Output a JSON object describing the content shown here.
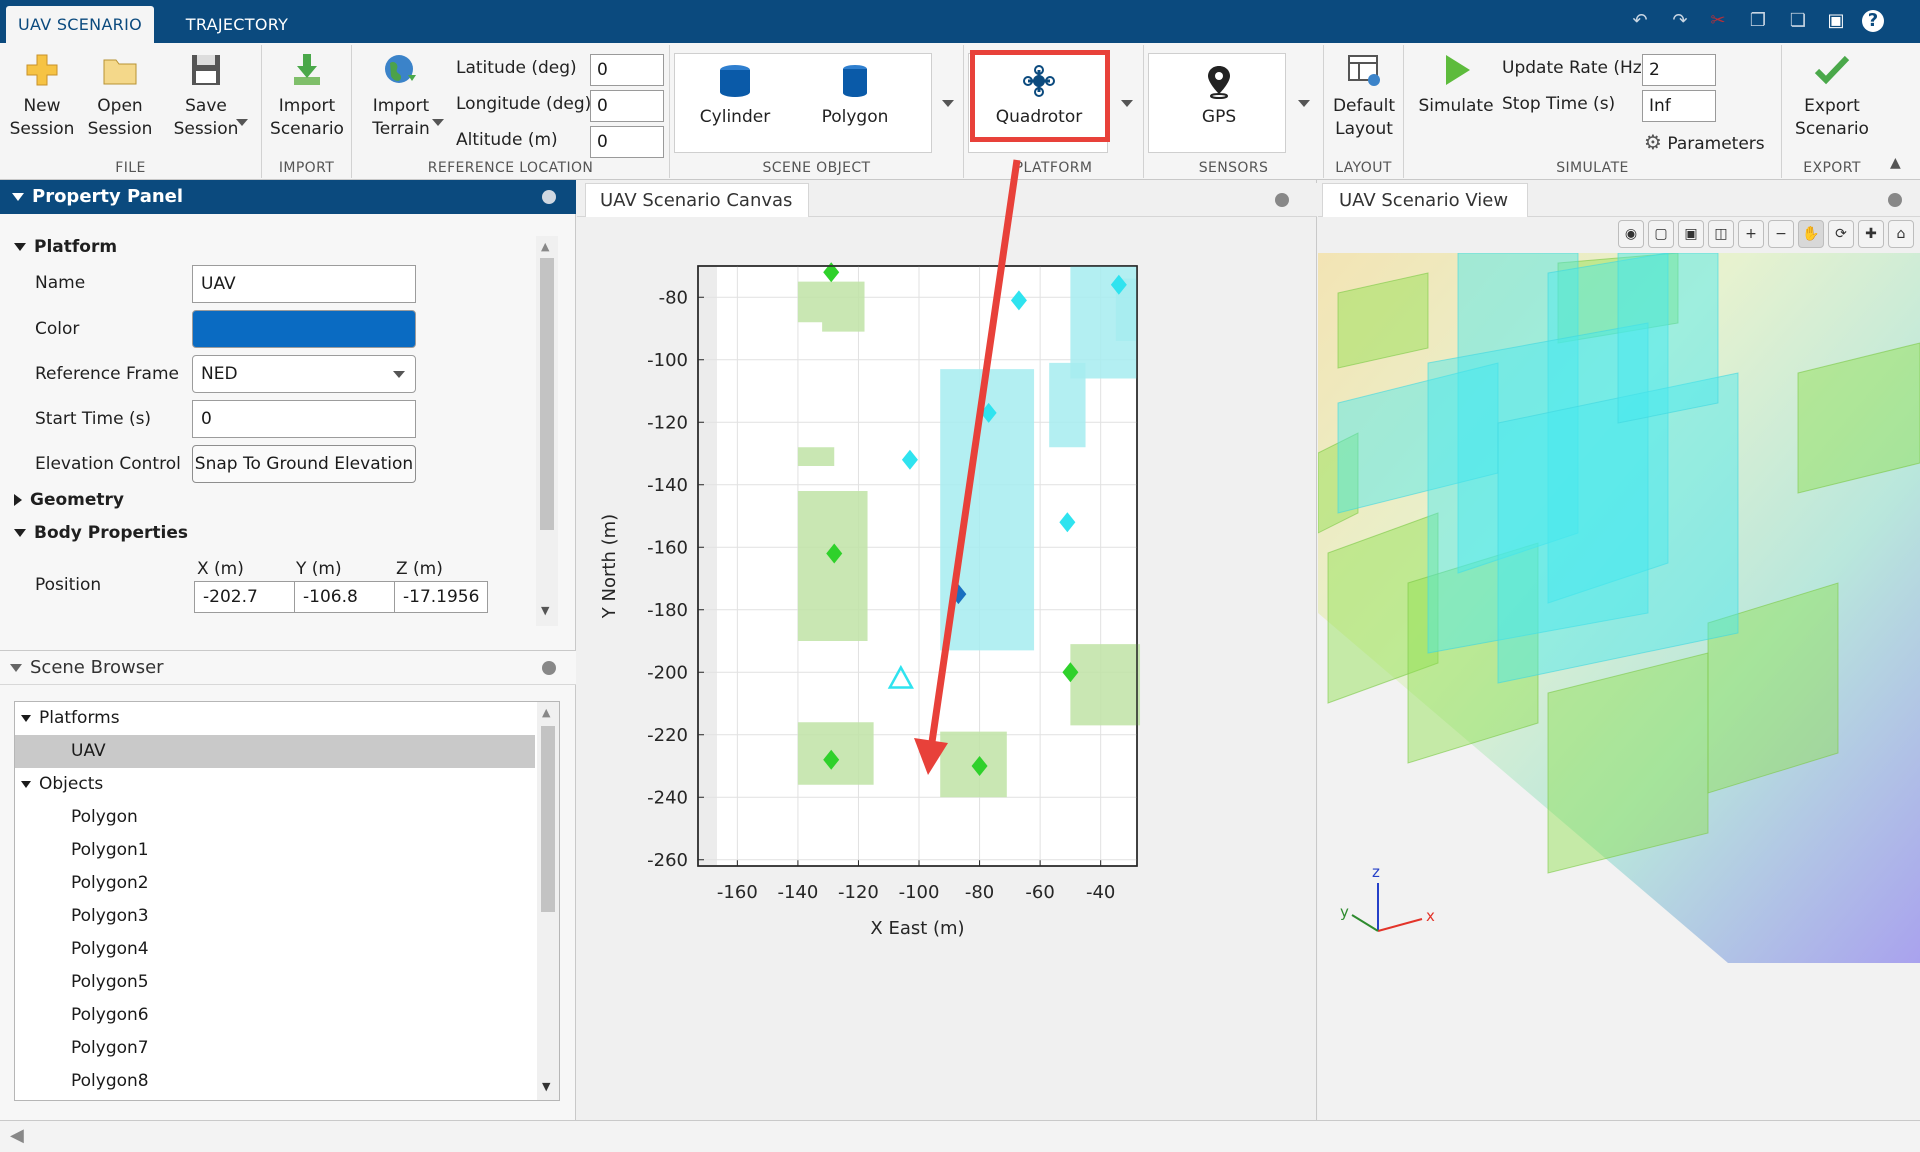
{
  "title_tabs": [
    "UAV SCENARIO",
    "TRAJECTORY"
  ],
  "ribbon": {
    "file": {
      "label": "FILE",
      "new_session": [
        "New",
        "Session"
      ],
      "open_session": [
        "Open",
        "Session"
      ],
      "save_session": [
        "Save",
        "Session"
      ]
    },
    "import": {
      "label": "IMPORT",
      "import_scenario": [
        "Import",
        "Scenario"
      ]
    },
    "reference_location": {
      "label": "REFERENCE LOCATION",
      "import_terrain": [
        "Import",
        "Terrain"
      ],
      "latitude_label": "Latitude (deg)",
      "latitude_value": "0",
      "longitude_label": "Longitude (deg)",
      "longitude_value": "0",
      "altitude_label": "Altitude (m)",
      "altitude_value": "0"
    },
    "scene_object": {
      "label": "SCENE OBJECT",
      "cylinder": "Cylinder",
      "polygon": "Polygon"
    },
    "platform": {
      "label": "PLATFORM",
      "quadrotor": "Quadrotor"
    },
    "sensors": {
      "label": "SENSORS",
      "gps": "GPS"
    },
    "layout": {
      "label": "LAYOUT",
      "default_layout": [
        "Default",
        "Layout"
      ]
    },
    "simulate": {
      "label": "SIMULATE",
      "simulate": "Simulate",
      "update_rate_label": "Update Rate (Hz)",
      "update_rate_value": "2",
      "stop_time_label": "Stop Time (s)",
      "stop_time_value": "Inf",
      "parameters": "Parameters"
    },
    "export": {
      "label": "EXPORT",
      "export_scenario": [
        "Export",
        "Scenario"
      ]
    }
  },
  "property_panel": {
    "title": "Property Panel",
    "section_platform": "Platform",
    "name_label": "Name",
    "name_value": "UAV",
    "color_label": "Color",
    "color_value": "#0a6bc2",
    "ref_frame_label": "Reference Frame",
    "ref_frame_value": "NED",
    "start_time_label": "Start Time (s)",
    "start_time_value": "0",
    "elevation_label": "Elevation Control",
    "elevation_button": "Snap To Ground Elevation",
    "section_geometry": "Geometry",
    "section_body": "Body Properties",
    "position_label": "Position",
    "position_headers": [
      "X (m)",
      "Y (m)",
      "Z (m)"
    ],
    "position_values": [
      "-202.7",
      "-106.8",
      "-17.1956"
    ]
  },
  "scene_browser": {
    "title": "Scene Browser",
    "platforms_label": "Platforms",
    "platforms": [
      "UAV"
    ],
    "objects_label": "Objects",
    "objects": [
      "Polygon",
      "Polygon1",
      "Polygon2",
      "Polygon3",
      "Polygon4",
      "Polygon5",
      "Polygon6",
      "Polygon7",
      "Polygon8"
    ]
  },
  "canvas": {
    "tab": "UAV Scenario Canvas"
  },
  "view": {
    "tab": "UAV Scenario View",
    "axis_labels": [
      "z",
      "y",
      "x"
    ]
  },
  "colors": {
    "brand": "#0b4a7e",
    "highlight": "#e8413a",
    "building_green": "#bfe3a6",
    "building_cyan": "#a6ecf0"
  },
  "chart_data": {
    "type": "scatter",
    "title": "",
    "xlabel": "X East (m)",
    "ylabel": "Y North (m)",
    "xlim": [
      -173,
      -28
    ],
    "ylim": [
      -262,
      -70
    ],
    "xticks": [
      -160,
      -140,
      -120,
      -100,
      -80,
      -60,
      -40
    ],
    "yticks": [
      -80,
      -100,
      -120,
      -140,
      -160,
      -180,
      -200,
      -220,
      -240,
      -260
    ],
    "grid": true,
    "polygons": [
      {
        "color": "green",
        "points": [
          [
            -140,
            -75
          ],
          [
            -118,
            -75
          ],
          [
            -118,
            -91
          ],
          [
            -132,
            -91
          ],
          [
            -132,
            -88
          ],
          [
            -140,
            -88
          ]
        ]
      },
      {
        "color": "green",
        "points": [
          [
            -140,
            -128
          ],
          [
            -128,
            -128
          ],
          [
            -128,
            -134
          ],
          [
            -140,
            -134
          ]
        ]
      },
      {
        "color": "green",
        "points": [
          [
            -140,
            -142
          ],
          [
            -117,
            -142
          ],
          [
            -117,
            -190
          ],
          [
            -140,
            -190
          ]
        ]
      },
      {
        "color": "green",
        "points": [
          [
            -140,
            -216
          ],
          [
            -115,
            -216
          ],
          [
            -115,
            -236
          ],
          [
            -140,
            -236
          ]
        ]
      },
      {
        "color": "green",
        "points": [
          [
            -93,
            -219
          ],
          [
            -71,
            -219
          ],
          [
            -71,
            -240
          ],
          [
            -93,
            -240
          ]
        ]
      },
      {
        "color": "green",
        "points": [
          [
            -50,
            -191
          ],
          [
            -27,
            -191
          ],
          [
            -27,
            -217
          ],
          [
            -50,
            -217
          ]
        ]
      },
      {
        "color": "cyan",
        "points": [
          [
            -93,
            -103
          ],
          [
            -62,
            -103
          ],
          [
            -62,
            -193
          ],
          [
            -93,
            -193
          ]
        ]
      },
      {
        "color": "cyan",
        "points": [
          [
            -57,
            -101
          ],
          [
            -45,
            -101
          ],
          [
            -45,
            -128
          ],
          [
            -57,
            -128
          ]
        ]
      },
      {
        "color": "cyan",
        "points": [
          [
            -50,
            -70
          ],
          [
            -28,
            -70
          ],
          [
            -28,
            -106
          ],
          [
            -50,
            -106
          ]
        ]
      },
      {
        "color": "cyan",
        "points": [
          [
            -35,
            -74
          ],
          [
            -28,
            -74
          ],
          [
            -28,
            -94
          ],
          [
            -35,
            -94
          ]
        ]
      }
    ],
    "series": [
      {
        "marker": "diamond",
        "color": "green",
        "points": [
          [
            -129,
            -72
          ],
          [
            -128,
            -162
          ],
          [
            -129,
            -228
          ],
          [
            -80,
            -230
          ],
          [
            -50,
            -200
          ]
        ]
      },
      {
        "marker": "diamond",
        "color": "cyan",
        "points": [
          [
            -67,
            -81
          ],
          [
            -34,
            -76
          ],
          [
            -77,
            -117
          ],
          [
            -103,
            -132
          ],
          [
            -51,
            -152
          ]
        ]
      },
      {
        "marker": "diamond",
        "color": "blue",
        "points": [
          [
            -87,
            -175
          ]
        ]
      },
      {
        "marker": "triangle",
        "color": "cyan",
        "points": [
          [
            -106,
            -202
          ]
        ]
      }
    ]
  }
}
